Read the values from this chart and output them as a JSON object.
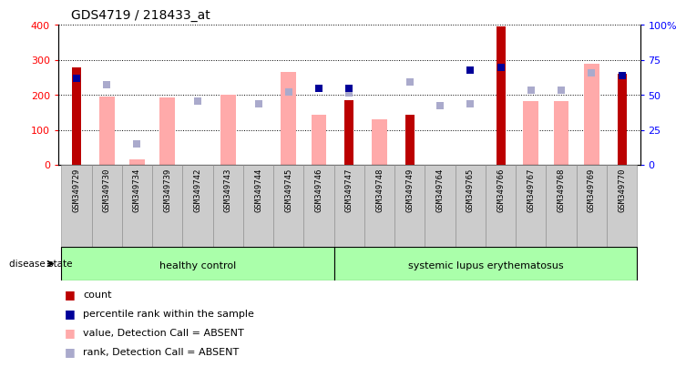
{
  "title": "GDS4719 / 218433_at",
  "samples": [
    "GSM349729",
    "GSM349730",
    "GSM349734",
    "GSM349739",
    "GSM349742",
    "GSM349743",
    "GSM349744",
    "GSM349745",
    "GSM349746",
    "GSM349747",
    "GSM349748",
    "GSM349749",
    "GSM349764",
    "GSM349765",
    "GSM349766",
    "GSM349767",
    "GSM349768",
    "GSM349769",
    "GSM349770"
  ],
  "healthy_count": 9,
  "disease_state_label": "disease state",
  "group_labels": [
    "healthy control",
    "systemic lupus erythematosus"
  ],
  "count_values": [
    280,
    null,
    null,
    null,
    null,
    null,
    null,
    null,
    null,
    185,
    null,
    143,
    null,
    null,
    395,
    null,
    null,
    null,
    260
  ],
  "percentile_values": [
    248,
    null,
    null,
    null,
    null,
    null,
    null,
    null,
    220,
    220,
    null,
    null,
    null,
    270,
    280,
    null,
    null,
    null,
    255
  ],
  "value_absent": [
    null,
    195,
    15,
    193,
    null,
    200,
    null,
    265,
    143,
    null,
    130,
    null,
    null,
    null,
    null,
    183,
    183,
    290,
    null
  ],
  "rank_absent": [
    null,
    230,
    60,
    null,
    182,
    null,
    175,
    208,
    null,
    205,
    null,
    237,
    170,
    175,
    null,
    213,
    213,
    263,
    null
  ],
  "ylim_left": [
    0,
    400
  ],
  "yticks_left": [
    0,
    100,
    200,
    300,
    400
  ],
  "yticks_right": [
    0,
    25,
    50,
    75,
    100
  ],
  "color_count": "#bb0000",
  "color_percentile": "#000099",
  "color_value_absent": "#ffaaaa",
  "color_rank_absent": "#aaaacc",
  "color_healthy_bg": "#aaffaa",
  "color_lupus_bg": "#aaffaa",
  "color_xticklabel_bg": "#cccccc",
  "legend_items": [
    {
      "color": "#bb0000",
      "label": "count"
    },
    {
      "color": "#000099",
      "label": "percentile rank within the sample"
    },
    {
      "color": "#ffaaaa",
      "label": "value, Detection Call = ABSENT"
    },
    {
      "color": "#aaaacc",
      "label": "rank, Detection Call = ABSENT"
    }
  ]
}
